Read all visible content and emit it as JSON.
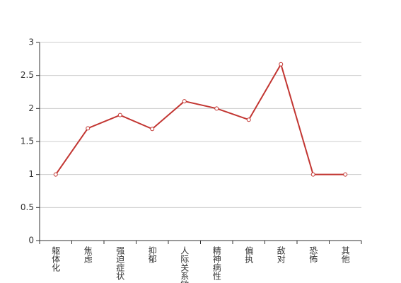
{
  "chart_data": {
    "type": "line",
    "categories": [
      "躯体化",
      "焦虑",
      "强迫症状",
      "抑郁",
      "人际关系敏感",
      "精神病性",
      "偏执",
      "敌对",
      "恐怖",
      "其他"
    ],
    "series": [
      {
        "color": "#c23531",
        "values": [
          1,
          1.7,
          1.9,
          1.69,
          2.11,
          2.0,
          1.83,
          2.67,
          1.0,
          1.0
        ]
      }
    ],
    "ylim": [
      0,
      3
    ],
    "yticks": [
      0,
      0.5,
      1,
      1.5,
      2,
      2.5,
      3
    ],
    "grid": true
  }
}
